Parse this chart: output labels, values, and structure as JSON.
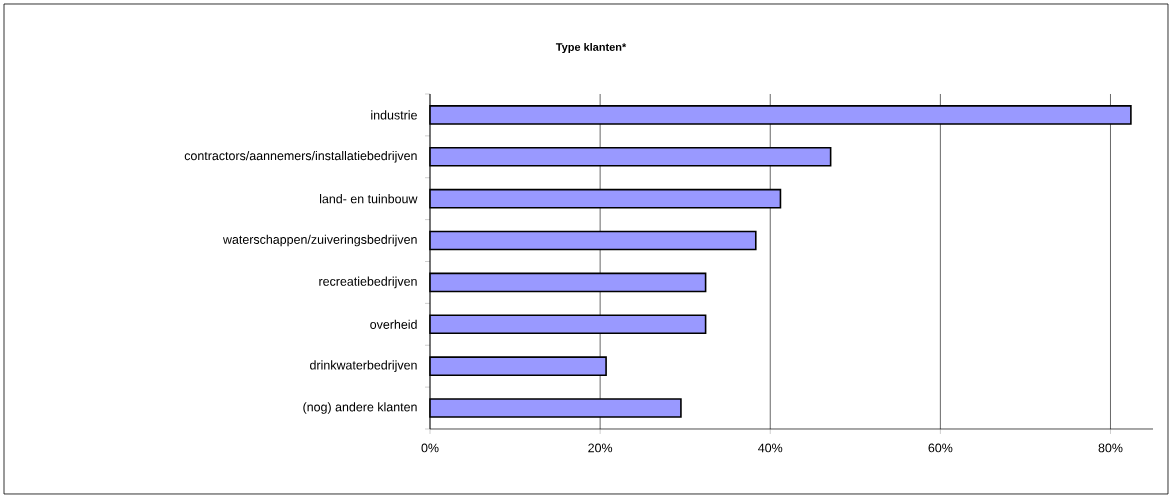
{
  "chart_data": {
    "type": "bar",
    "orientation": "horizontal",
    "title": "Type klanten*",
    "categories": [
      "industrie",
      "contractors/aannemers/installatiebedrijven",
      "land- en tuinbouw",
      "waterschappen/zuiveringsbedrijven",
      "recreatiebedrijven",
      "overheid",
      "drinkwaterbedrijven",
      "(nog) andere klanten"
    ],
    "values": [
      82.4,
      47.1,
      41.2,
      38.3,
      32.4,
      32.4,
      20.7,
      29.5
    ],
    "color": "#9999ff",
    "xlim": [
      0,
      85
    ],
    "xticks": [
      {
        "value": 0,
        "label": "0%"
      },
      {
        "value": 20,
        "label": "20%"
      },
      {
        "value": 40,
        "label": "40%"
      },
      {
        "value": 60,
        "label": "60%"
      },
      {
        "value": 80,
        "label": "80%"
      }
    ],
    "grid": "x"
  }
}
